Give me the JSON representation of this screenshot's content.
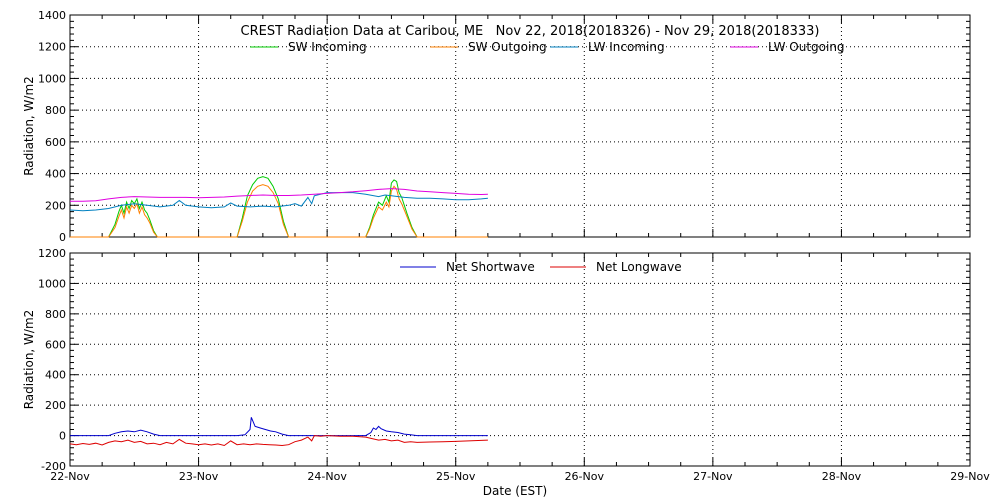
{
  "chart_data": [
    {
      "type": "line",
      "title": "CREST Radiation Data at Caribou, ME   Nov 22, 2018(2018326) - Nov 29, 2018(2018333)",
      "xlabel": "",
      "ylabel": "Radiation, W/m2",
      "xlim": [
        "22-Nov",
        "29-Nov"
      ],
      "ylim": [
        0,
        1400
      ],
      "yticks": [
        0,
        200,
        400,
        600,
        800,
        1000,
        1200,
        1400
      ],
      "grid": true,
      "legend": "top-center",
      "series": [
        {
          "name": "SW Incoming",
          "color": "#00cc00",
          "points": [
            [
              0.0,
              0
            ],
            [
              0.3,
              0
            ],
            [
              0.35,
              80
            ],
            [
              0.38,
              160
            ],
            [
              0.4,
              200
            ],
            [
              0.42,
              150
            ],
            [
              0.44,
              220
            ],
            [
              0.46,
              180
            ],
            [
              0.48,
              230
            ],
            [
              0.5,
              210
            ],
            [
              0.52,
              240
            ],
            [
              0.54,
              180
            ],
            [
              0.56,
              220
            ],
            [
              0.58,
              170
            ],
            [
              0.6,
              150
            ],
            [
              0.62,
              110
            ],
            [
              0.65,
              40
            ],
            [
              0.68,
              0
            ],
            [
              1.3,
              0
            ],
            [
              1.34,
              120
            ],
            [
              1.38,
              260
            ],
            [
              1.42,
              330
            ],
            [
              1.46,
              370
            ],
            [
              1.5,
              380
            ],
            [
              1.54,
              370
            ],
            [
              1.58,
              320
            ],
            [
              1.62,
              240
            ],
            [
              1.66,
              100
            ],
            [
              1.7,
              0
            ],
            [
              2.3,
              0
            ],
            [
              2.33,
              60
            ],
            [
              2.36,
              140
            ],
            [
              2.4,
              220
            ],
            [
              2.43,
              200
            ],
            [
              2.46,
              260
            ],
            [
              2.48,
              220
            ],
            [
              2.5,
              340
            ],
            [
              2.52,
              360
            ],
            [
              2.54,
              350
            ],
            [
              2.56,
              280
            ],
            [
              2.58,
              250
            ],
            [
              2.6,
              200
            ],
            [
              2.62,
              150
            ],
            [
              2.66,
              60
            ],
            [
              2.7,
              0
            ],
            [
              3.25,
              0
            ]
          ]
        },
        {
          "name": "SW Outgoing",
          "color": "#ff8000",
          "points": [
            [
              0.0,
              0
            ],
            [
              0.3,
              0
            ],
            [
              0.35,
              60
            ],
            [
              0.38,
              130
            ],
            [
              0.4,
              170
            ],
            [
              0.42,
              120
            ],
            [
              0.44,
              190
            ],
            [
              0.46,
              150
            ],
            [
              0.48,
              200
            ],
            [
              0.5,
              180
            ],
            [
              0.52,
              210
            ],
            [
              0.54,
              150
            ],
            [
              0.56,
              190
            ],
            [
              0.58,
              140
            ],
            [
              0.6,
              120
            ],
            [
              0.62,
              90
            ],
            [
              0.65,
              30
            ],
            [
              0.68,
              0
            ],
            [
              1.3,
              0
            ],
            [
              1.34,
              100
            ],
            [
              1.38,
              220
            ],
            [
              1.42,
              290
            ],
            [
              1.46,
              320
            ],
            [
              1.5,
              330
            ],
            [
              1.54,
              320
            ],
            [
              1.58,
              280
            ],
            [
              1.62,
              210
            ],
            [
              1.66,
              80
            ],
            [
              1.7,
              0
            ],
            [
              2.3,
              0
            ],
            [
              2.33,
              50
            ],
            [
              2.36,
              120
            ],
            [
              2.4,
              190
            ],
            [
              2.43,
              170
            ],
            [
              2.46,
              220
            ],
            [
              2.48,
              190
            ],
            [
              2.5,
              290
            ],
            [
              2.52,
              320
            ],
            [
              2.54,
              300
            ],
            [
              2.56,
              240
            ],
            [
              2.58,
              210
            ],
            [
              2.6,
              170
            ],
            [
              2.62,
              130
            ],
            [
              2.66,
              50
            ],
            [
              2.7,
              0
            ],
            [
              3.25,
              0
            ]
          ]
        },
        {
          "name": "LW Incoming",
          "color": "#0080c0",
          "points": [
            [
              0.0,
              170
            ],
            [
              0.1,
              165
            ],
            [
              0.2,
              170
            ],
            [
              0.3,
              180
            ],
            [
              0.4,
              200
            ],
            [
              0.5,
              210
            ],
            [
              0.6,
              200
            ],
            [
              0.7,
              190
            ],
            [
              0.8,
              200
            ],
            [
              0.85,
              230
            ],
            [
              0.9,
              200
            ],
            [
              1.0,
              190
            ],
            [
              1.1,
              185
            ],
            [
              1.2,
              190
            ],
            [
              1.25,
              215
            ],
            [
              1.3,
              195
            ],
            [
              1.4,
              190
            ],
            [
              1.5,
              195
            ],
            [
              1.6,
              190
            ],
            [
              1.7,
              200
            ],
            [
              1.75,
              210
            ],
            [
              1.8,
              195
            ],
            [
              1.85,
              250
            ],
            [
              1.88,
              210
            ],
            [
              1.9,
              260
            ],
            [
              2.0,
              280
            ],
            [
              2.1,
              280
            ],
            [
              2.2,
              280
            ],
            [
              2.3,
              270
            ],
            [
              2.4,
              255
            ],
            [
              2.45,
              265
            ],
            [
              2.5,
              260
            ],
            [
              2.6,
              250
            ],
            [
              2.7,
              245
            ],
            [
              2.8,
              245
            ],
            [
              2.9,
              240
            ],
            [
              3.0,
              235
            ],
            [
              3.1,
              235
            ],
            [
              3.2,
              240
            ],
            [
              3.25,
              245
            ]
          ]
        },
        {
          "name": "LW Outgoing",
          "color": "#e000e0",
          "points": [
            [
              0.0,
              225
            ],
            [
              0.1,
              225
            ],
            [
              0.2,
              228
            ],
            [
              0.3,
              240
            ],
            [
              0.4,
              250
            ],
            [
              0.5,
              255
            ],
            [
              0.6,
              252
            ],
            [
              0.7,
              250
            ],
            [
              0.8,
              250
            ],
            [
              0.9,
              250
            ],
            [
              1.0,
              248
            ],
            [
              1.1,
              250
            ],
            [
              1.2,
              252
            ],
            [
              1.3,
              258
            ],
            [
              1.4,
              262
            ],
            [
              1.5,
              265
            ],
            [
              1.6,
              262
            ],
            [
              1.7,
              262
            ],
            [
              1.8,
              265
            ],
            [
              1.9,
              270
            ],
            [
              2.0,
              275
            ],
            [
              2.1,
              280
            ],
            [
              2.2,
              285
            ],
            [
              2.3,
              292
            ],
            [
              2.4,
              300
            ],
            [
              2.5,
              305
            ],
            [
              2.6,
              300
            ],
            [
              2.7,
              290
            ],
            [
              2.8,
              285
            ],
            [
              2.9,
              280
            ],
            [
              3.0,
              275
            ],
            [
              3.1,
              270
            ],
            [
              3.2,
              268
            ],
            [
              3.25,
              270
            ]
          ]
        }
      ]
    },
    {
      "type": "line",
      "title": "",
      "xlabel": "Date (EST)",
      "ylabel": "Radiation, W/m2",
      "xticks": [
        "22-Nov",
        "23-Nov",
        "24-Nov",
        "25-Nov",
        "26-Nov",
        "27-Nov",
        "28-Nov",
        "29-Nov"
      ],
      "xlim": [
        "22-Nov",
        "29-Nov"
      ],
      "ylim": [
        -200,
        1200
      ],
      "yticks": [
        -200,
        0,
        200,
        400,
        600,
        800,
        1000,
        1200
      ],
      "grid": true,
      "legend": "top-center",
      "series": [
        {
          "name": "Net Shortwave",
          "color": "#0000cc",
          "points": [
            [
              0.0,
              0
            ],
            [
              0.3,
              0
            ],
            [
              0.35,
              15
            ],
            [
              0.4,
              25
            ],
            [
              0.45,
              30
            ],
            [
              0.5,
              25
            ],
            [
              0.55,
              35
            ],
            [
              0.6,
              25
            ],
            [
              0.65,
              10
            ],
            [
              0.7,
              0
            ],
            [
              1.3,
              0
            ],
            [
              1.36,
              5
            ],
            [
              1.4,
              40
            ],
            [
              1.41,
              120
            ],
            [
              1.42,
              100
            ],
            [
              1.44,
              60
            ],
            [
              1.48,
              50
            ],
            [
              1.52,
              40
            ],
            [
              1.56,
              30
            ],
            [
              1.6,
              25
            ],
            [
              1.65,
              10
            ],
            [
              1.7,
              0
            ],
            [
              2.3,
              0
            ],
            [
              2.34,
              20
            ],
            [
              2.36,
              50
            ],
            [
              2.38,
              40
            ],
            [
              2.4,
              60
            ],
            [
              2.42,
              45
            ],
            [
              2.46,
              30
            ],
            [
              2.5,
              25
            ],
            [
              2.55,
              20
            ],
            [
              2.6,
              10
            ],
            [
              2.65,
              5
            ],
            [
              2.7,
              0
            ],
            [
              3.25,
              0
            ]
          ]
        },
        {
          "name": "Net Longwave",
          "color": "#dd0000",
          "points": [
            [
              0.0,
              -55
            ],
            [
              0.05,
              -60
            ],
            [
              0.1,
              -52
            ],
            [
              0.15,
              -58
            ],
            [
              0.2,
              -50
            ],
            [
              0.25,
              -62
            ],
            [
              0.3,
              -45
            ],
            [
              0.35,
              -35
            ],
            [
              0.4,
              -40
            ],
            [
              0.45,
              -30
            ],
            [
              0.5,
              -45
            ],
            [
              0.55,
              -38
            ],
            [
              0.6,
              -55
            ],
            [
              0.65,
              -50
            ],
            [
              0.7,
              -60
            ],
            [
              0.75,
              -45
            ],
            [
              0.8,
              -55
            ],
            [
              0.85,
              -25
            ],
            [
              0.9,
              -50
            ],
            [
              0.95,
              -55
            ],
            [
              1.0,
              -60
            ],
            [
              1.05,
              -55
            ],
            [
              1.1,
              -62
            ],
            [
              1.15,
              -55
            ],
            [
              1.2,
              -65
            ],
            [
              1.25,
              -35
            ],
            [
              1.3,
              -60
            ],
            [
              1.35,
              -55
            ],
            [
              1.4,
              -60
            ],
            [
              1.45,
              -55
            ],
            [
              1.5,
              -58
            ],
            [
              1.55,
              -60
            ],
            [
              1.6,
              -62
            ],
            [
              1.65,
              -65
            ],
            [
              1.7,
              -60
            ],
            [
              1.75,
              -40
            ],
            [
              1.8,
              -30
            ],
            [
              1.85,
              -10
            ],
            [
              1.88,
              -35
            ],
            [
              1.9,
              0
            ],
            [
              1.95,
              -5
            ],
            [
              2.0,
              0
            ],
            [
              2.1,
              -5
            ],
            [
              2.2,
              -5
            ],
            [
              2.3,
              -10
            ],
            [
              2.35,
              -20
            ],
            [
              2.4,
              -30
            ],
            [
              2.45,
              -25
            ],
            [
              2.5,
              -35
            ],
            [
              2.55,
              -30
            ],
            [
              2.6,
              -45
            ],
            [
              2.65,
              -40
            ],
            [
              2.7,
              -45
            ],
            [
              2.8,
              -42
            ],
            [
              2.9,
              -40
            ],
            [
              3.0,
              -38
            ],
            [
              3.1,
              -35
            ],
            [
              3.2,
              -32
            ],
            [
              3.25,
              -30
            ]
          ]
        }
      ]
    }
  ]
}
